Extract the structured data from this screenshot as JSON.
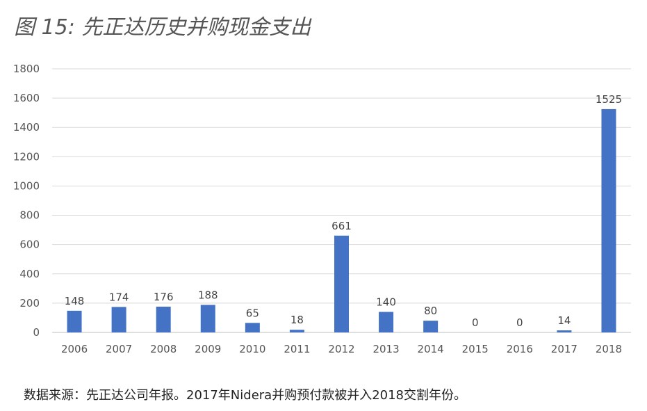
{
  "title": "图 15: 先正达历史并购现金支出",
  "footer": "数据来源：先正达公司年报。2017年Nidera并购预付款被并入2018交割年份。",
  "chart_data": {
    "type": "bar",
    "categories": [
      "2006",
      "2007",
      "2008",
      "2009",
      "2010",
      "2011",
      "2012",
      "2013",
      "2014",
      "2015",
      "2016",
      "2017",
      "2018"
    ],
    "values": [
      148,
      174,
      176,
      188,
      65,
      18,
      661,
      140,
      80,
      0,
      0,
      14,
      1525
    ],
    "ylim": [
      0,
      1800
    ],
    "yticks": [
      0,
      200,
      400,
      600,
      800,
      1000,
      1200,
      1400,
      1600,
      1800
    ],
    "grid": true,
    "bar_color": "#4472C4",
    "data_labels": true
  }
}
